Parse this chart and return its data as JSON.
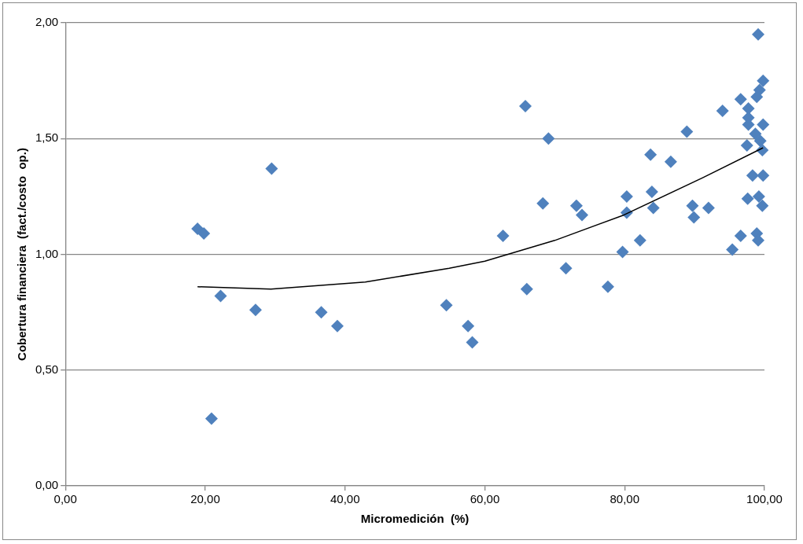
{
  "chart_data": {
    "type": "scatter",
    "xlabel": "Micromedición  (%)",
    "ylabel": "Cobertura financiera  (fact./costo  op.)",
    "xlim": [
      0,
      100
    ],
    "ylim": [
      0,
      2
    ],
    "xticks": [
      {
        "value": 0,
        "label": "0,00"
      },
      {
        "value": 20,
        "label": "20,00"
      },
      {
        "value": 40,
        "label": "40,00"
      },
      {
        "value": 60,
        "label": "60,00"
      },
      {
        "value": 80,
        "label": "80,00"
      },
      {
        "value": 100,
        "label": "100,00"
      }
    ],
    "yticks": [
      {
        "value": 0,
        "label": "0,00"
      },
      {
        "value": 0.5,
        "label": "0,50"
      },
      {
        "value": 1,
        "label": "1,00"
      },
      {
        "value": 1.5,
        "label": "1,50"
      },
      {
        "value": 2,
        "label": "2,00"
      }
    ],
    "grid": "y",
    "legend": false,
    "marker": "diamond",
    "series": [
      {
        "type": "scatter",
        "color": "#4f81bd",
        "x": [
          18.9,
          19.8,
          29.5,
          22.2,
          27.2,
          36.6,
          38.9,
          54.5,
          57.6,
          58.2,
          20.9,
          65.8,
          69.1,
          62.6,
          68.3,
          73.1,
          73.9,
          66.0,
          71.6,
          77.6,
          79.7,
          80.3,
          80.3,
          82.2,
          83.7,
          83.9,
          84.1,
          86.6,
          88.9,
          89.7,
          89.9,
          99.1,
          99.8,
          99.3,
          98.9,
          96.6,
          94.0,
          97.7,
          97.7,
          97.7,
          99.8,
          98.7,
          97.5,
          99.4,
          99.7,
          98.3,
          99.8,
          97.6,
          99.2,
          99.7,
          92.0,
          96.6,
          98.9,
          99.1,
          95.4
        ],
        "values": [
          1.11,
          1.09,
          1.37,
          0.82,
          0.76,
          0.75,
          0.69,
          0.78,
          0.69,
          0.62,
          0.29,
          1.64,
          1.5,
          1.08,
          1.22,
          1.21,
          1.17,
          0.85,
          0.94,
          0.86,
          1.01,
          1.25,
          1.18,
          1.06,
          1.43,
          1.27,
          1.2,
          1.4,
          1.53,
          1.21,
          1.16,
          1.95,
          1.75,
          1.71,
          1.68,
          1.67,
          1.62,
          1.63,
          1.59,
          1.56,
          1.56,
          1.52,
          1.47,
          1.49,
          1.45,
          1.34,
          1.34,
          1.24,
          1.25,
          1.21,
          1.2,
          1.08,
          1.09,
          1.06,
          1.02
        ]
      },
      {
        "type": "line",
        "color": "#000000",
        "marker": "none",
        "x": [
          18.9,
          29.4,
          42.9,
          54.9,
          60.0,
          70.0,
          79.9,
          91.1,
          99.8
        ],
        "values": [
          0.86,
          0.85,
          0.88,
          0.94,
          0.97,
          1.06,
          1.17,
          1.33,
          1.46
        ]
      }
    ]
  }
}
